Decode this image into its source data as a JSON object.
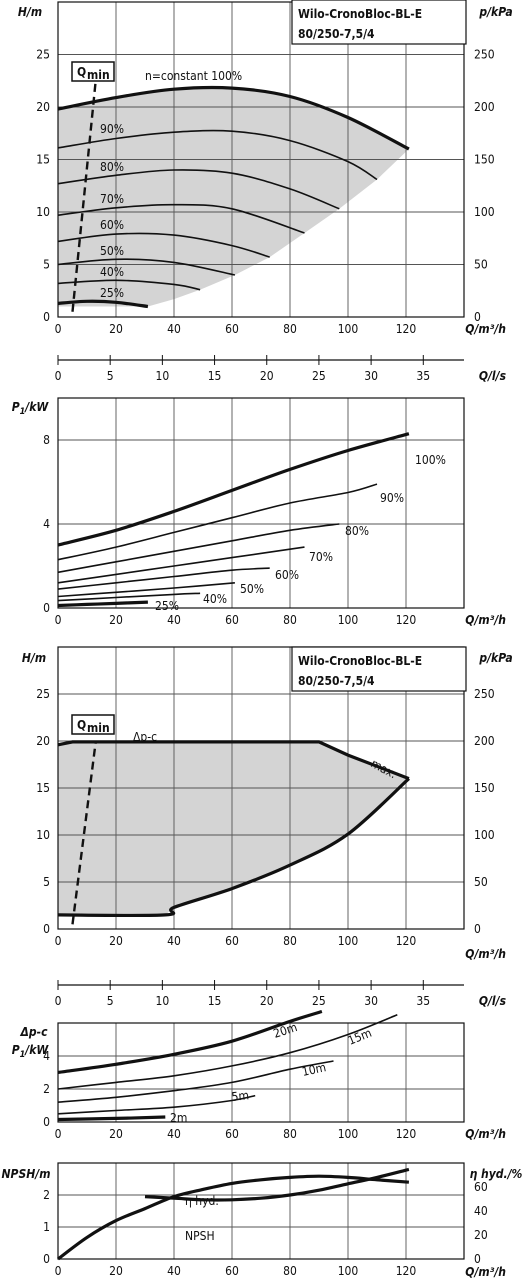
{
  "colors": {
    "curve": "#111111",
    "area": "#d4d4d4",
    "grid": "#555555"
  },
  "chart_data": [
    {
      "type": "line",
      "title": "Wilo-CronoBloc-BL-E 80/250-7,5/4",
      "xlabel": "Q/m³/h",
      "ylabel": "H/m",
      "y2label": "p/kPa",
      "xlim": [
        0,
        140
      ],
      "ylim": [
        0,
        30
      ],
      "y2lim": [
        0,
        300
      ],
      "xticks": [
        0,
        20,
        40,
        60,
        80,
        100,
        120
      ],
      "yticks": [
        0,
        5,
        10,
        15,
        20,
        25
      ],
      "y2ticks": [
        0,
        50,
        100,
        150,
        200,
        250
      ],
      "qmin_label": "Qmin",
      "series": [
        {
          "name": "n=constant 100%",
          "x": [
            0,
            20,
            40,
            60,
            80,
            100,
            121
          ],
          "y": [
            19.8,
            20.9,
            21.7,
            21.8,
            21.0,
            19.0,
            16.0
          ]
        },
        {
          "name": "90%",
          "x": [
            0,
            20,
            40,
            60,
            80,
            100,
            110
          ],
          "y": [
            16.1,
            17.0,
            17.6,
            17.7,
            16.8,
            14.8,
            13.1
          ]
        },
        {
          "name": "80%",
          "x": [
            0,
            20,
            40,
            60,
            80,
            97
          ],
          "y": [
            12.7,
            13.5,
            14.0,
            13.7,
            12.2,
            10.3
          ]
        },
        {
          "name": "70%",
          "x": [
            0,
            20,
            40,
            60,
            85
          ],
          "y": [
            9.7,
            10.4,
            10.7,
            10.3,
            8.0
          ]
        },
        {
          "name": "60%",
          "x": [
            0,
            20,
            40,
            60,
            73
          ],
          "y": [
            7.2,
            7.9,
            7.8,
            6.8,
            5.7
          ]
        },
        {
          "name": "50%",
          "x": [
            0,
            20,
            40,
            61
          ],
          "y": [
            5.0,
            5.5,
            5.2,
            4.0
          ]
        },
        {
          "name": "40%",
          "x": [
            0,
            20,
            40,
            49
          ],
          "y": [
            3.2,
            3.5,
            3.1,
            2.6
          ]
        },
        {
          "name": "25%",
          "x": [
            0,
            10,
            20,
            31
          ],
          "y": [
            1.3,
            1.5,
            1.4,
            1.0
          ]
        }
      ]
    },
    {
      "type": "line",
      "xlabel": "Q/l/s",
      "xlim": [
        0,
        38.9
      ],
      "xticks": [
        0,
        5,
        10,
        15,
        20,
        25,
        30,
        35
      ]
    },
    {
      "type": "line",
      "xlabel": "Q/m³/h",
      "ylabel": "P1/kW",
      "xlim": [
        0,
        140
      ],
      "ylim": [
        0,
        10
      ],
      "xticks": [
        0,
        20,
        40,
        60,
        80,
        100,
        120
      ],
      "yticks": [
        0,
        4,
        8
      ],
      "series": [
        {
          "name": "100%",
          "x": [
            0,
            20,
            40,
            60,
            80,
            100,
            121
          ],
          "y": [
            3.0,
            3.7,
            4.6,
            5.6,
            6.6,
            7.5,
            8.3
          ]
        },
        {
          "name": "90%",
          "x": [
            0,
            20,
            40,
            60,
            80,
            100,
            110
          ],
          "y": [
            2.3,
            2.9,
            3.6,
            4.3,
            5.0,
            5.5,
            5.9
          ]
        },
        {
          "name": "80%",
          "x": [
            0,
            20,
            40,
            60,
            80,
            97
          ],
          "y": [
            1.7,
            2.2,
            2.7,
            3.2,
            3.7,
            4.0
          ]
        },
        {
          "name": "70%",
          "x": [
            0,
            20,
            40,
            60,
            85
          ],
          "y": [
            1.2,
            1.6,
            2.0,
            2.4,
            2.9
          ]
        },
        {
          "name": "60%",
          "x": [
            0,
            20,
            40,
            60,
            73
          ],
          "y": [
            0.9,
            1.2,
            1.5,
            1.8,
            1.9
          ]
        },
        {
          "name": "50%",
          "x": [
            0,
            20,
            40,
            61
          ],
          "y": [
            0.55,
            0.75,
            0.95,
            1.2
          ]
        },
        {
          "name": "40%",
          "x": [
            0,
            20,
            40,
            49
          ],
          "y": [
            0.35,
            0.5,
            0.65,
            0.7
          ]
        },
        {
          "name": "25%",
          "x": [
            0,
            10,
            20,
            31
          ],
          "y": [
            0.12,
            0.17,
            0.22,
            0.28
          ]
        }
      ]
    },
    {
      "type": "area",
      "title": "Wilo-CronoBloc-BL-E 80/250-7,5/4",
      "xlabel": "Q/m³/h",
      "ylabel": "H/m",
      "y2label": "p/kPa",
      "xlim": [
        0,
        140
      ],
      "ylim": [
        0,
        30
      ],
      "y2lim": [
        0,
        300
      ],
      "xticks": [
        0,
        20,
        40,
        60,
        80,
        100,
        120
      ],
      "yticks": [
        0,
        5,
        10,
        15,
        20,
        25
      ],
      "y2ticks": [
        0,
        50,
        100,
        150,
        200,
        250
      ],
      "qmin_label": "Qmin",
      "labels": {
        "dpc": "Δp-c",
        "max": "max."
      },
      "series": [
        {
          "name": "Δp-c",
          "x": [
            0,
            5,
            90,
            100,
            121
          ],
          "y": [
            19.6,
            19.9,
            19.9,
            18.5,
            16.0
          ]
        },
        {
          "name": "min",
          "x": [
            0,
            37,
            40,
            60,
            80,
            100,
            121
          ],
          "y": [
            1.5,
            1.5,
            2.3,
            4.3,
            6.8,
            10.1,
            16.0
          ]
        }
      ]
    },
    {
      "type": "line",
      "xlabel": "Q/l/s",
      "xlim": [
        0,
        38.9
      ],
      "xticks": [
        0,
        5,
        10,
        15,
        20,
        25,
        30,
        35
      ]
    },
    {
      "type": "line",
      "xlabel": "Q/m³/h",
      "ylabel": "Δp-c P1/kW",
      "xlim": [
        0,
        140
      ],
      "ylim": [
        0,
        6
      ],
      "xticks": [
        0,
        20,
        40,
        60,
        80,
        100,
        120
      ],
      "yticks": [
        0,
        2,
        4
      ],
      "series": [
        {
          "name": "20m",
          "x": [
            0,
            20,
            40,
            60,
            80,
            91
          ],
          "y": [
            3.0,
            3.5,
            4.1,
            4.9,
            6.1,
            6.7
          ]
        },
        {
          "name": "15m",
          "x": [
            0,
            20,
            40,
            60,
            80,
            100,
            117
          ],
          "y": [
            2.0,
            2.4,
            2.8,
            3.4,
            4.2,
            5.3,
            6.5
          ]
        },
        {
          "name": "10m",
          "x": [
            0,
            20,
            40,
            60,
            80,
            95
          ],
          "y": [
            1.2,
            1.5,
            1.9,
            2.4,
            3.2,
            3.7
          ]
        },
        {
          "name": "5m",
          "x": [
            0,
            20,
            40,
            60,
            68
          ],
          "y": [
            0.5,
            0.7,
            0.9,
            1.3,
            1.6
          ]
        },
        {
          "name": "2m",
          "x": [
            0,
            20,
            37
          ],
          "y": [
            0.15,
            0.22,
            0.3
          ]
        }
      ]
    },
    {
      "type": "line",
      "xlabel": "Q/m³/h",
      "ylabel": "NPSH/m",
      "y2label": "η hyd./%",
      "xlim": [
        0,
        140
      ],
      "ylim": [
        0,
        3
      ],
      "y2lim": [
        0,
        80
      ],
      "xticks": [
        0,
        20,
        40,
        60,
        80,
        100,
        120
      ],
      "yticks": [
        0,
        1,
        2
      ],
      "y2ticks": [
        0,
        20,
        40,
        60
      ],
      "series": [
        {
          "name": "η hyd.",
          "axis": "right",
          "x": [
            0,
            10,
            20,
            30,
            40,
            50,
            60,
            70,
            80,
            90,
            100,
            110,
            121
          ],
          "y": [
            0,
            18,
            32,
            42,
            52,
            58,
            63,
            66,
            68,
            69,
            68,
            66,
            64
          ]
        },
        {
          "name": "NPSH",
          "axis": "left",
          "x": [
            30,
            40,
            50,
            60,
            70,
            80,
            90,
            100,
            110,
            121
          ],
          "y": [
            1.95,
            1.9,
            1.85,
            1.85,
            1.9,
            2.0,
            2.15,
            2.35,
            2.55,
            2.8
          ]
        }
      ]
    }
  ]
}
